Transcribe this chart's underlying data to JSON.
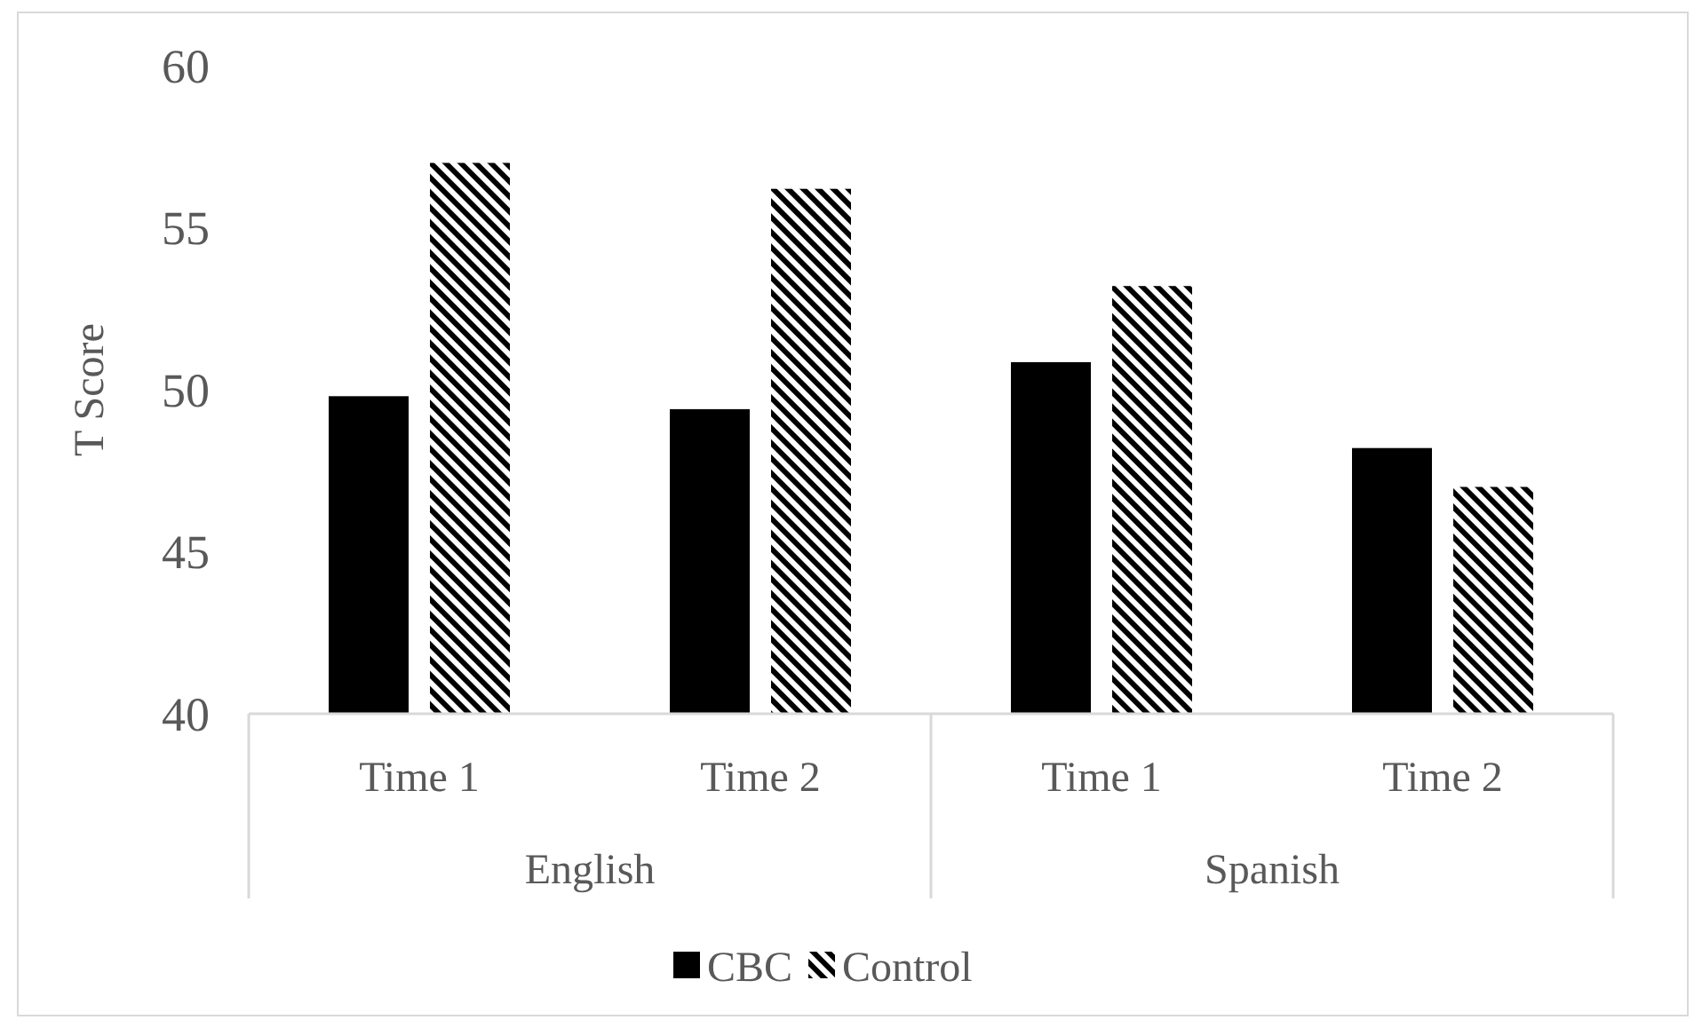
{
  "chart_data": {
    "type": "bar",
    "ylabel": "T Score",
    "categories": [
      "Time 1",
      "Time 2",
      "Time 1",
      "Time 2"
    ],
    "series": [
      {
        "name": "CBC",
        "color": "#000000",
        "values": [
          49.8,
          49.4,
          50.85,
          48.2
        ]
      },
      {
        "name": "Control",
        "color": "#000000",
        "values": [
          57.0,
          56.2,
          53.2,
          47.0
        ]
      }
    ],
    "annotations": [
      "English",
      "Spanish"
    ],
    "ylim": [
      40,
      60
    ],
    "yticks": [
      40,
      45,
      50,
      55,
      60
    ],
    "grid": false,
    "legend": "bottom"
  }
}
